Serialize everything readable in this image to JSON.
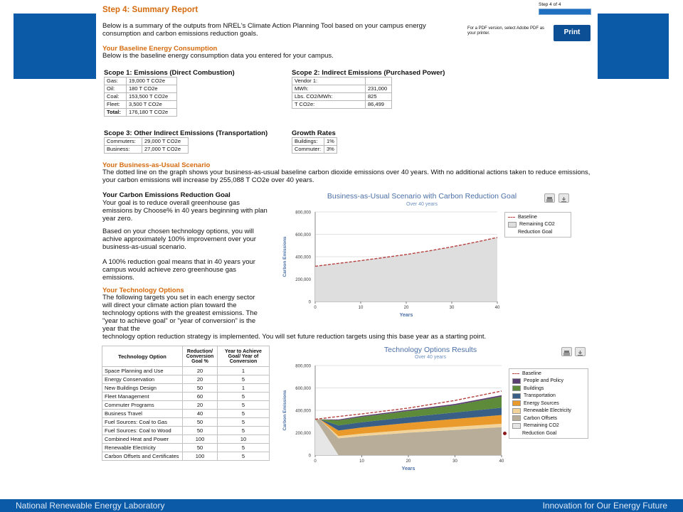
{
  "header": {
    "title": "Step 4: Summary Report",
    "step_label": "Step 4 of 4",
    "step_progress": 1.0,
    "pdf_note": "For a PDF version, select Adobe PDF as your printer.",
    "print_label": "Print"
  },
  "intro": "Below is a summary of the outputs from NREL's Climate Action Planning Tool based on your campus energy consumption and carbon emissions reduction goals.",
  "baseline": {
    "heading": "Your Baseline Energy Consumption",
    "text": "Below is the baseline energy consumption data you entered for your campus."
  },
  "scope1": {
    "title": "Scope 1: Emissions (Direct Combustion)",
    "rows": [
      {
        "label": "Gas:",
        "value": "19,000 T CO2e"
      },
      {
        "label": "Oil:",
        "value": "180 T CO2e"
      },
      {
        "label": "Coal:",
        "value": "153,500 T CO2e"
      },
      {
        "label": "Fleet:",
        "value": "3,500 T CO2e"
      },
      {
        "label": "Total:",
        "value": "176,180 T CO2e"
      }
    ]
  },
  "scope2": {
    "title": "Scope 2: Indirect Emissions (Purchased Power)",
    "vendor": "Vendor 1:",
    "rows": [
      {
        "label": "MWh:",
        "value": "231,000"
      },
      {
        "label": "Lbs. CO2/MWh:",
        "value": "825"
      },
      {
        "label": "T CO2e:",
        "value": "86,499"
      }
    ]
  },
  "scope3": {
    "title": "Scope 3: Other Indirect Emissions (Transportation)",
    "rows": [
      {
        "label": "Commuters:",
        "value": "29,000 T CO2e"
      },
      {
        "label": "Business:",
        "value": "27,000 T CO2e"
      }
    ]
  },
  "growth": {
    "title": "Growth Rates",
    "rows": [
      {
        "label": "Buildings:",
        "value": "1%"
      },
      {
        "label": "Commuter:",
        "value": "3%"
      }
    ]
  },
  "bau": {
    "heading": "Your Business-as-Usual Scenario",
    "text": "The dotted line on the graph shows your business-as-usual baseline carbon dioxide emissions over 40 years. With no additional actions taken to reduce emissions, your carbon emissions will increase by 255,088 T CO2e over 40 years."
  },
  "goal": {
    "heading": "Your Carbon Emissions Reduction Goal",
    "p1": "Your goal is to reduce overall greenhouse gas emissions by Choose% in 40 years beginning with plan year zero.",
    "p2": "Based on your chosen technology options, you will achive approximately 100% improvement over your business-as-usual scenario.",
    "p3": "A 100% reduction goal means that in 40 years your campus would achieve zero greenhouse gas emissions."
  },
  "tech": {
    "heading": "Your Technology Options",
    "text": "The following targets you set in each energy sector will direct your climate action plan toward the technology options with the greatest emissions. The \"year to achieve goal\" or \"year of conversion\" is the year that the technology option reduction strategy is implemented. You will set future reduction targets using this base year as a starting point.",
    "columns": [
      "Technology Option",
      "Reduction/ Conversion Goal %",
      "Year to Achieve Goal/ Year of Conversion"
    ],
    "rows": [
      {
        "option": "Space Planning and Use",
        "goal": "20",
        "year": "1"
      },
      {
        "option": "Energy Conservation",
        "goal": "20",
        "year": "5"
      },
      {
        "option": "New Buildings Design",
        "goal": "50",
        "year": "1"
      },
      {
        "option": "Fleet Management",
        "goal": "60",
        "year": "5"
      },
      {
        "option": "Commuter Programs",
        "goal": "20",
        "year": "5"
      },
      {
        "option": "Business Travel",
        "goal": "40",
        "year": "5"
      },
      {
        "option": "Fuel Sources: Coal to Gas",
        "goal": "50",
        "year": "5"
      },
      {
        "option": "Fuel Sources: Coal to Wood",
        "goal": "50",
        "year": "5"
      },
      {
        "option": "Combined Heat and Power",
        "goal": "100",
        "year": "10"
      },
      {
        "option": "Renewable Electricity",
        "goal": "50",
        "year": "5"
      },
      {
        "option": "Carbon Offsets and Certificates",
        "goal": "100",
        "year": "5"
      }
    ]
  },
  "chart_data": [
    {
      "type": "area",
      "title": "Business-as-Usual Scenario with Carbon Reduction Goal",
      "subtitle": "Over 40 years",
      "xlabel": "Years",
      "ylabel": "Carbon Emissions",
      "xlim": [
        0,
        40
      ],
      "ylim": [
        0,
        800000
      ],
      "xticks": [
        0,
        10,
        20,
        30,
        40
      ],
      "yticks": [
        0,
        200000,
        400000,
        600000,
        800000
      ],
      "ytick_labels": [
        "0",
        "200,000",
        "400,000",
        "600,000",
        "800,000"
      ],
      "x": [
        0,
        5,
        10,
        15,
        20,
        25,
        30,
        35,
        40
      ],
      "series": [
        {
          "name": "Baseline",
          "style": "dashed",
          "color": "#b5413f",
          "values": [
            315000,
            340000,
            365000,
            392000,
            420000,
            452000,
            488000,
            528000,
            572000
          ]
        },
        {
          "name": "Remaining CO2",
          "style": "area",
          "color": "#dedede",
          "values": [
            315000,
            340000,
            365000,
            392000,
            420000,
            452000,
            488000,
            528000,
            572000
          ]
        }
      ],
      "markers": [
        {
          "name": "Reduction Goal",
          "color": "#8b1a1a",
          "shape": "dot"
        }
      ],
      "legend": "right"
    },
    {
      "type": "area",
      "title": "Technology Options Results",
      "subtitle": "Over 40 years",
      "xlabel": "Years",
      "ylabel": "Carbon Emissions",
      "xlim": [
        0,
        40
      ],
      "ylim": [
        0,
        800000
      ],
      "xticks": [
        0,
        10,
        20,
        30,
        40
      ],
      "yticks": [
        0,
        200000,
        400000,
        600000,
        800000
      ],
      "ytick_labels": [
        "0",
        "200,000",
        "400,000",
        "600,000",
        "800,000"
      ],
      "x": [
        0,
        1,
        5,
        10,
        20,
        30,
        40
      ],
      "stacked": true,
      "series": [
        {
          "name": "Remaining CO2",
          "color": "#e6e6e6",
          "values": [
            320000,
            260000,
            0,
            0,
            0,
            0,
            0
          ]
        },
        {
          "name": "Carbon Offsets",
          "color": "#b8ad98",
          "values": [
            0,
            60000,
            150000,
            170000,
            200000,
            225000,
            250000
          ]
        },
        {
          "name": "Renewable Electricity",
          "color": "#f2d49a",
          "values": [
            0,
            0,
            20000,
            22000,
            25000,
            28000,
            30000
          ]
        },
        {
          "name": "Energy Sources",
          "color": "#e99a2b",
          "values": [
            0,
            0,
            50000,
            55000,
            62000,
            70000,
            78000
          ]
        },
        {
          "name": "Transportation",
          "color": "#3a5f86",
          "values": [
            0,
            0,
            45000,
            47000,
            52000,
            58000,
            65000
          ]
        },
        {
          "name": "Buildings",
          "color": "#5d8b3a",
          "values": [
            0,
            0,
            45000,
            48000,
            55000,
            65000,
            100000
          ]
        },
        {
          "name": "People and Policy",
          "color": "#5b3f73",
          "values": [
            0,
            0,
            8000,
            9000,
            10000,
            11000,
            12000
          ]
        }
      ],
      "baseline": {
        "name": "Baseline",
        "color": "#b5413f",
        "values": [
          320000,
          325000,
          345000,
          368000,
          420000,
          488000,
          572000
        ]
      },
      "markers": [
        {
          "name": "Reduction Goal",
          "color": "#8b1a1a",
          "shape": "dot"
        }
      ],
      "legend": "right"
    }
  ],
  "footer": {
    "left": "National Renewable Energy Laboratory",
    "right": "Innovation for Our Energy Future"
  },
  "colors": {
    "brand_blue": "#0a5aa8",
    "heading_orange": "#d56b0f"
  },
  "icons": [
    "print-icon",
    "download-icon"
  ]
}
